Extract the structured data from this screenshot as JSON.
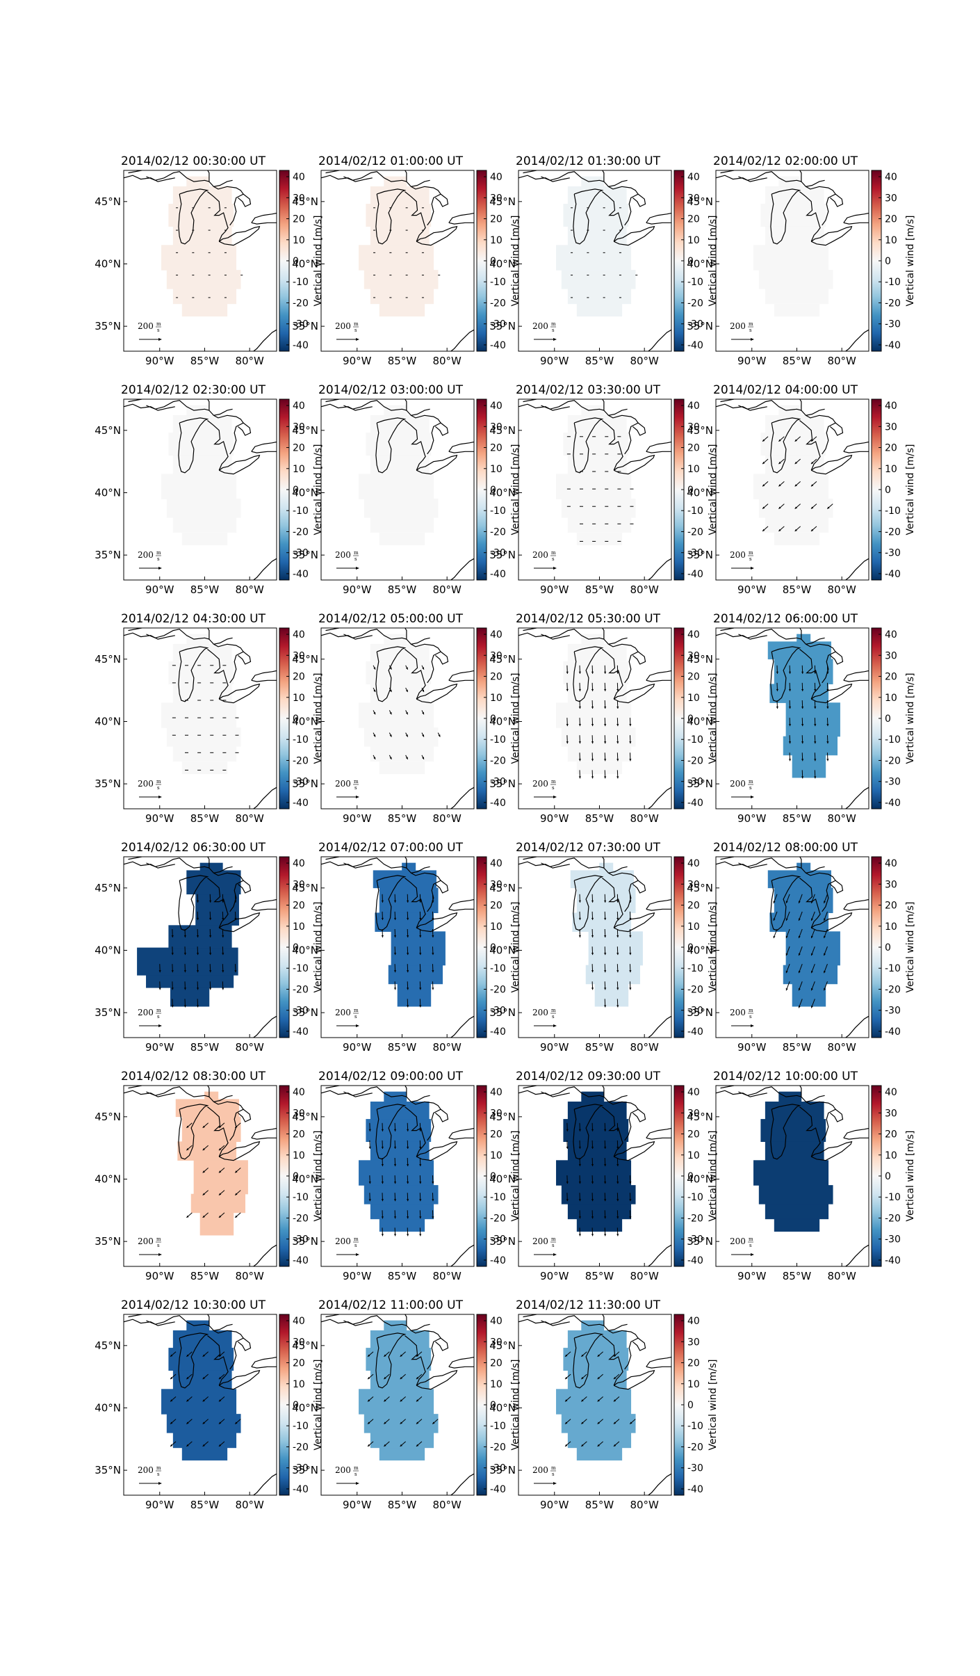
{
  "figure": {
    "colorbar_label": "Vertical wind [m/s]",
    "colorbar_ticks": [
      40,
      30,
      20,
      10,
      0,
      -10,
      -20,
      -30,
      -40
    ],
    "colorbar_range": [
      -43,
      43
    ],
    "lon_ticks": [
      "90°W",
      "85°W",
      "80°W"
    ],
    "lat_ticks": [
      "45°N",
      "40°N",
      "35°N"
    ],
    "scale_label": "200",
    "scale_unit_num": "m",
    "scale_unit_den": "s",
    "colormap": [
      "#053061",
      "#2166ac",
      "#4393c3",
      "#92c5de",
      "#d1e5f0",
      "#f7f7f7",
      "#fddbc7",
      "#f4a582",
      "#d6604d",
      "#b2182b",
      "#67001f"
    ]
  },
  "panels": [
    {
      "title": "2014/02/12 00:30:00 UT",
      "value": 3,
      "region": "full",
      "arrows": "dots"
    },
    {
      "title": "2014/02/12 01:00:00 UT",
      "value": 3,
      "region": "full",
      "arrows": "dots"
    },
    {
      "title": "2014/02/12 01:30:00 UT",
      "value": -2,
      "region": "full",
      "arrows": "dots"
    },
    {
      "title": "2014/02/12 02:00:00 UT",
      "value": 0,
      "region": "full",
      "arrows": "none"
    },
    {
      "title": "2014/02/12 02:30:00 UT",
      "value": 0,
      "region": "full",
      "arrows": "none"
    },
    {
      "title": "2014/02/12 03:00:00 UT",
      "value": 0,
      "region": "full",
      "arrows": "none"
    },
    {
      "title": "2014/02/12 03:30:00 UT",
      "value": 0,
      "region": "full",
      "arrows": "tiny"
    },
    {
      "title": "2014/02/12 04:00:00 UT",
      "value": 0,
      "region": "full",
      "arrows": "sw"
    },
    {
      "title": "2014/02/12 04:30:00 UT",
      "value": 0,
      "region": "full",
      "arrows": "tiny"
    },
    {
      "title": "2014/02/12 05:00:00 UT",
      "value": 0,
      "region": "full",
      "arrows": "few"
    },
    {
      "title": "2014/02/12 05:30:00 UT",
      "value": 0,
      "region": "full",
      "arrows": "south"
    },
    {
      "title": "2014/02/12 06:00:00 UT",
      "value": -25,
      "region": "east",
      "arrows": "south"
    },
    {
      "title": "2014/02/12 06:30:00 UT",
      "value": -40,
      "region": "west",
      "arrows": "south"
    },
    {
      "title": "2014/02/12 07:00:00 UT",
      "value": -33,
      "region": "east",
      "arrows": "south"
    },
    {
      "title": "2014/02/12 07:30:00 UT",
      "value": -8,
      "region": "east",
      "arrows": "south"
    },
    {
      "title": "2014/02/12 08:00:00 UT",
      "value": -30,
      "region": "east",
      "arrows": "ssw"
    },
    {
      "title": "2014/02/12 08:30:00 UT",
      "value": 12,
      "region": "east",
      "arrows": "sw"
    },
    {
      "title": "2014/02/12 09:00:00 UT",
      "value": -33,
      "region": "full",
      "arrows": "south"
    },
    {
      "title": "2014/02/12 09:30:00 UT",
      "value": -42,
      "region": "full",
      "arrows": "south"
    },
    {
      "title": "2014/02/12 10:00:00 UT",
      "value": -41,
      "region": "full",
      "arrows": "none"
    },
    {
      "title": "2014/02/12 10:30:00 UT",
      "value": -36,
      "region": "full",
      "arrows": "sw"
    },
    {
      "title": "2014/02/12 11:00:00 UT",
      "value": -22,
      "region": "full",
      "arrows": "sw"
    },
    {
      "title": "2014/02/12 11:30:00 UT",
      "value": -22,
      "region": "full",
      "arrows": "sw"
    }
  ]
}
